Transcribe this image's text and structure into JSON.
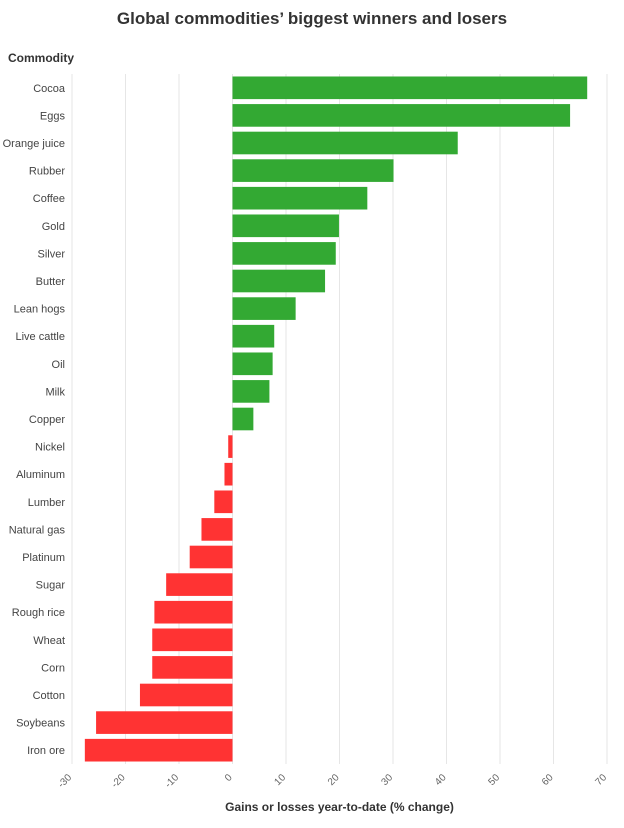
{
  "chart_data": {
    "type": "bar",
    "orientation": "horizontal",
    "title": "Global commodities’ biggest winners and losers",
    "ylabel": "Commodity",
    "xlabel": "Gains or losses year-to-date (% change)",
    "xlim": [
      -30,
      70
    ],
    "xticks": [
      -30,
      -20,
      -10,
      0,
      10,
      20,
      30,
      40,
      50,
      60,
      70
    ],
    "grid": true,
    "colors": {
      "positive": "#33a933",
      "negative": "#ff3333",
      "grid": "#e6e6e6"
    },
    "categories": [
      "Cocoa",
      "Eggs",
      "Orange juice",
      "Rubber",
      "Coffee",
      "Gold",
      "Silver",
      "Butter",
      "Lean hogs",
      "Live cattle",
      "Oil",
      "Milk",
      "Copper",
      "Nickel",
      "Aluminum",
      "Lumber",
      "Natural gas",
      "Platinum",
      "Sugar",
      "Rough rice",
      "Wheat",
      "Corn",
      "Cotton",
      "Soybeans",
      "Iron ore"
    ],
    "values": [
      66.3,
      63.1,
      42.1,
      30.1,
      25.2,
      19.9,
      19.3,
      17.3,
      11.8,
      7.8,
      7.5,
      6.9,
      3.9,
      -0.8,
      -1.5,
      -3.4,
      -5.8,
      -8.0,
      -12.4,
      -14.6,
      -15.0,
      -15.0,
      -17.3,
      -25.5,
      -27.6
    ]
  }
}
